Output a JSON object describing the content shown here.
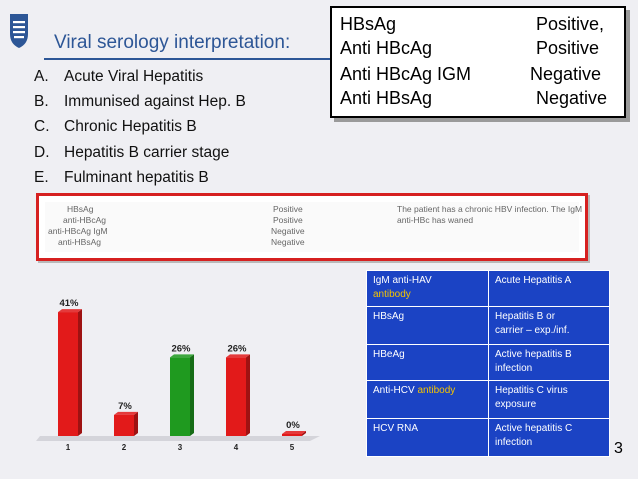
{
  "slide": {
    "title": "Viral serology interpretation:",
    "page_number": "3"
  },
  "callout": {
    "rows": [
      {
        "name": "HBsAg",
        "value": "Positive,"
      },
      {
        "name": "Anti HBcAg",
        "value": "Positive"
      },
      {
        "name": "Anti HBcAg IGM",
        "value": "Negative"
      },
      {
        "name": "Anti HBsAg",
        "value": "Negative"
      }
    ]
  },
  "options": [
    {
      "letter": "A.",
      "text": "Acute Viral Hepatitis"
    },
    {
      "letter": "B.",
      "text": "Immunised against Hep. B"
    },
    {
      "letter": "C.",
      "text": "Chronic Hepatitis B"
    },
    {
      "letter": "D.",
      "text": "Hepatitis B carrier stage"
    },
    {
      "letter": "E.",
      "text": "Fulminant hepatitis B"
    }
  ],
  "answer": {
    "rows": [
      {
        "name": "HBsAg",
        "value": "Positive"
      },
      {
        "name": "anti-HBcAg",
        "value": "Positive"
      },
      {
        "name": "anti-HBcAg IgM",
        "value": "Negative"
      },
      {
        "name": "anti-HBsAg",
        "value": "Negative"
      }
    ],
    "explanation_line1": "The patient has a chronic HBV infection. The IgM",
    "explanation_line2": "anti-HBc has waned"
  },
  "chart_data": {
    "type": "bar",
    "categories": [
      "1",
      "2",
      "3",
      "4",
      "5"
    ],
    "values": [
      41,
      7,
      26,
      26,
      0
    ],
    "data_labels": [
      "41%",
      "7%",
      "26%",
      "26%",
      "0%"
    ],
    "colors": [
      "#e21a1a",
      "#e21a1a",
      "#1f9a1f",
      "#e21a1a",
      "#e21a1a"
    ],
    "ylim": [
      0,
      45
    ],
    "grid": false
  },
  "info_table": {
    "rows": [
      {
        "marker": "IgM anti-HAV",
        "marker_highlight": "antibody",
        "meaning": "Acute Hepatitis A"
      },
      {
        "marker": "HBsAg",
        "marker_highlight": "",
        "meaning_line1": "Hepatitis B or",
        "meaning_line2": "carrier –  exp./inf."
      },
      {
        "marker": "HBeAg",
        "marker_highlight": "",
        "meaning_line1": "Active hepatitis B",
        "meaning_line2": "infection"
      },
      {
        "marker": "Anti-HCV",
        "marker_highlight": "antibody",
        "meaning_line1": "Hepatitis C virus",
        "meaning_line2": "exposure"
      },
      {
        "marker": "HCV RNA",
        "marker_highlight": "",
        "meaning_line1": "Active hepatitis C",
        "meaning_line2": "infection"
      }
    ],
    "colors": {
      "background": "#1b43c4",
      "highlight": "#f4c400"
    }
  }
}
